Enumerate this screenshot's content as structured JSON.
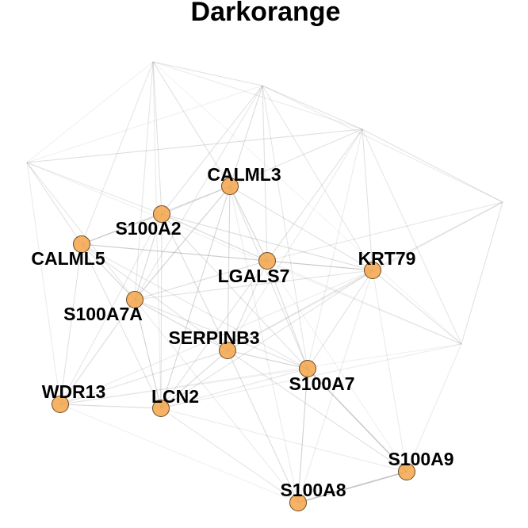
{
  "chart_data": {
    "type": "network",
    "title": "Darkorange",
    "node_color": "#f5a64a",
    "edge_color": "#9a9a9a",
    "labeled_nodes": [
      "CALML3",
      "S100A2",
      "CALML5",
      "LGALS7",
      "KRT79",
      "S100A7A",
      "SERPINB3",
      "S100A7",
      "WDR13",
      "LCN2",
      "S100A9",
      "S100A8"
    ],
    "unlabeled_node_count": 6,
    "edges": [
      [
        "S100A9",
        "S100A8",
        0.6
      ],
      [
        "S100A9",
        "S100A7",
        0.5
      ],
      [
        "S100A8",
        "S100A7",
        0.45
      ],
      [
        "S100A8",
        "SERPINB3",
        0.35
      ],
      [
        "S100A8",
        "LCN2",
        0.25
      ],
      [
        "S100A8",
        "KRT79",
        0.2
      ],
      [
        "S100A8",
        "S100A7A",
        0.2
      ],
      [
        "S100A8",
        "WDR13",
        0.15
      ],
      [
        "S100A8",
        "CALML3",
        0.2
      ],
      [
        "S100A9",
        "SERPINB3",
        0.3
      ],
      [
        "S100A9",
        "LCN2",
        0.2
      ],
      [
        "S100A9",
        "KRT79",
        0.2
      ],
      [
        "S100A9",
        "LGALS7",
        0.15
      ],
      [
        "S100A9",
        "u_bottomright",
        0.2
      ],
      [
        "S100A7",
        "SERPINB3",
        0.45
      ],
      [
        "S100A7",
        "LGALS7",
        0.35
      ],
      [
        "S100A7",
        "KRT79",
        0.3
      ],
      [
        "S100A7",
        "S100A2",
        0.3
      ],
      [
        "S100A7",
        "CALML3",
        0.3
      ],
      [
        "S100A7",
        "S100A7A",
        0.3
      ],
      [
        "S100A7",
        "LCN2",
        0.25
      ],
      [
        "S100A7",
        "WDR13",
        0.2
      ],
      [
        "S100A7",
        "u_righttop",
        0.2
      ],
      [
        "S100A7",
        "u_topcenter",
        0.25
      ],
      [
        "SERPINB3",
        "S100A7A",
        0.4
      ],
      [
        "SERPINB3",
        "LCN2",
        0.4
      ],
      [
        "SERPINB3",
        "LGALS7",
        0.35
      ],
      [
        "SERPINB3",
        "CALML3",
        0.4
      ],
      [
        "SERPINB3",
        "S100A2",
        0.35
      ],
      [
        "SERPINB3",
        "KRT79",
        0.3
      ],
      [
        "SERPINB3",
        "WDR13",
        0.3
      ],
      [
        "SERPINB3",
        "CALML5",
        0.3
      ],
      [
        "SERPINB3",
        "u_farright",
        0.2
      ],
      [
        "SERPINB3",
        "u_righttop",
        0.2
      ],
      [
        "LCN2",
        "S100A7A",
        0.45
      ],
      [
        "LCN2",
        "WDR13",
        0.4
      ],
      [
        "LCN2",
        "CALML3",
        0.4
      ],
      [
        "LCN2",
        "S100A2",
        0.3
      ],
      [
        "LCN2",
        "KRT79",
        0.3
      ],
      [
        "LCN2",
        "CALML5",
        0.3
      ],
      [
        "LCN2",
        "LGALS7",
        0.3
      ],
      [
        "LCN2",
        "u_bottomright",
        0.2
      ],
      [
        "LCN2",
        "u_topleft",
        0.2
      ],
      [
        "WDR13",
        "S100A7A",
        0.35
      ],
      [
        "WDR13",
        "CALML5",
        0.3
      ],
      [
        "WDR13",
        "S100A2",
        0.25
      ],
      [
        "WDR13",
        "KRT79",
        0.2
      ],
      [
        "WDR13",
        "u_left",
        0.2
      ],
      [
        "WDR13",
        "u_bottomright",
        0.15
      ],
      [
        "S100A7A",
        "CALML5",
        0.4
      ],
      [
        "S100A7A",
        "S100A2",
        0.4
      ],
      [
        "S100A7A",
        "CALML3",
        0.45
      ],
      [
        "S100A7A",
        "LGALS7",
        0.35
      ],
      [
        "S100A7A",
        "KRT79",
        0.3
      ],
      [
        "S100A7A",
        "u_left",
        0.25
      ],
      [
        "S100A7A",
        "u_topleft",
        0.25
      ],
      [
        "S100A7A",
        "u_topcenter",
        0.25
      ],
      [
        "CALML5",
        "S100A2",
        0.45
      ],
      [
        "CALML5",
        "LGALS7",
        0.3
      ],
      [
        "CALML5",
        "KRT79",
        0.3
      ],
      [
        "CALML5",
        "u_left",
        0.3
      ],
      [
        "CALML5",
        "u_topleft",
        0.25
      ],
      [
        "CALML5",
        "S100A7",
        0.25
      ],
      [
        "S100A2",
        "CALML3",
        0.4
      ],
      [
        "S100A2",
        "LGALS7",
        0.4
      ],
      [
        "S100A2",
        "KRT79",
        0.35
      ],
      [
        "S100A2",
        "u_topleft",
        0.3
      ],
      [
        "S100A2",
        "u_topcenter",
        0.3
      ],
      [
        "S100A2",
        "u_left",
        0.25
      ],
      [
        "CALML3",
        "LGALS7",
        0.4
      ],
      [
        "CALML3",
        "KRT79",
        0.3
      ],
      [
        "CALML3",
        "u_topcenter",
        0.35
      ],
      [
        "CALML3",
        "u_topleft",
        0.3
      ],
      [
        "CALML3",
        "u_righttop",
        0.3
      ],
      [
        "CALML3",
        "CALML5",
        0.3
      ],
      [
        "LGALS7",
        "KRT79",
        0.4
      ],
      [
        "LGALS7",
        "u_righttop",
        0.3
      ],
      [
        "LGALS7",
        "u_farright",
        0.25
      ],
      [
        "LGALS7",
        "u_topcenter",
        0.3
      ],
      [
        "LGALS7",
        "u_bottomright",
        0.2
      ],
      [
        "KRT79",
        "u_farright",
        0.3
      ],
      [
        "KRT79",
        "u_righttop",
        0.3
      ],
      [
        "KRT79",
        "u_bottomright",
        0.3
      ],
      [
        "KRT79",
        "u_topcenter",
        0.25
      ],
      [
        "u_topleft",
        "u_topcenter",
        0.3
      ],
      [
        "u_topleft",
        "u_left",
        0.15
      ],
      [
        "u_topleft",
        "u_righttop",
        0.2
      ],
      [
        "u_topcenter",
        "u_righttop",
        0.3
      ],
      [
        "u_topcenter",
        "u_farright",
        0.2
      ],
      [
        "u_topcenter",
        "u_left",
        0.15
      ],
      [
        "u_righttop",
        "u_farright",
        0.3
      ],
      [
        "u_righttop",
        "u_bottomright",
        0.25
      ],
      [
        "u_righttop",
        "u_left",
        0.2
      ],
      [
        "u_farright",
        "u_bottomright",
        0.3
      ],
      [
        "u_left",
        "u_righttop",
        0.15
      ],
      [
        "u_left",
        "u_bottomright",
        0.15
      ],
      [
        "u_bottomright",
        "u_topleft",
        0.12
      ]
    ]
  }
}
